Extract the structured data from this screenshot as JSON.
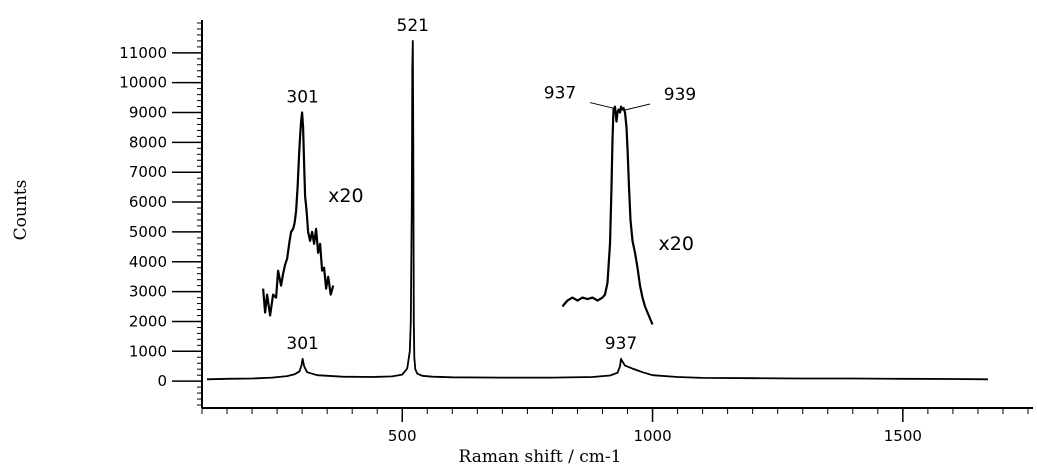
{
  "chart_data": {
    "type": "line",
    "title": "",
    "xlabel": "Raman shift / cm-1",
    "ylabel": "Counts",
    "xlim": [
      100,
      1760
    ],
    "ylim": [
      -900,
      12100
    ],
    "x_ticks": [
      500,
      1000,
      1500
    ],
    "x_tick_labels": [
      "500",
      "1000",
      "1500"
    ],
    "y_ticks": [
      0,
      1000,
      2000,
      3000,
      4000,
      5000,
      6000,
      7000,
      8000,
      9000,
      10000,
      11000
    ],
    "y_tick_labels": [
      "0",
      "1000",
      "2000",
      "3000",
      "4000",
      "5000",
      "6000",
      "7000",
      "8000",
      "9000",
      "10000",
      "11000"
    ],
    "grid": false,
    "legend": "none",
    "series": [
      {
        "name": "",
        "color": "#000000",
        "x": [
          110,
          150,
          200,
          240,
          270,
          285,
          295,
          299,
          301,
          304,
          310,
          330,
          380,
          440,
          480,
          500,
          510,
          515,
          517,
          519,
          520,
          521,
          522,
          523,
          524,
          526,
          530,
          540,
          560,
          600,
          700,
          800,
          880,
          915,
          930,
          935,
          937,
          939,
          945,
          960,
          980,
          1000,
          1050,
          1100,
          1200,
          1300,
          1400,
          1500,
          1600,
          1670
        ],
        "y": [
          60,
          80,
          90,
          120,
          170,
          230,
          330,
          550,
          750,
          500,
          300,
          200,
          150,
          140,
          160,
          220,
          420,
          1000,
          2000,
          6000,
          10500,
          11400,
          8000,
          2000,
          800,
          400,
          250,
          180,
          150,
          130,
          120,
          120,
          140,
          190,
          280,
          500,
          750,
          680,
          520,
          420,
          300,
          200,
          140,
          110,
          100,
          90,
          90,
          80,
          70,
          60
        ]
      },
      {
        "name": "",
        "color": "#000000",
        "x": [
          222,
          226,
          230,
          236,
          242,
          248,
          252,
          258,
          262,
          266,
          270,
          275,
          278,
          282,
          285,
          288,
          291,
          294,
          296,
          298,
          300,
          302,
          304,
          306,
          309,
          312,
          316,
          320,
          324,
          328,
          332,
          336,
          340,
          344,
          348,
          352,
          357,
          362
        ],
        "y": [
          3100,
          2300,
          2900,
          2200,
          2900,
          2800,
          3700,
          3200,
          3600,
          3900,
          4100,
          4700,
          5000,
          5100,
          5300,
          5700,
          6500,
          7600,
          8200,
          8700,
          9000,
          8500,
          7300,
          6200,
          5700,
          5000,
          4700,
          5000,
          4600,
          5100,
          4300,
          4600,
          3700,
          3800,
          3100,
          3500,
          2900,
          3200
        ]
      },
      {
        "name": "",
        "color": "#000000",
        "x": [
          820,
          825,
          830,
          840,
          850,
          860,
          870,
          880,
          890,
          900,
          905,
          910,
          915,
          918,
          920,
          922,
          925,
          928,
          930,
          932,
          935,
          937,
          939,
          942,
          945,
          948,
          950,
          953,
          956,
          960,
          965,
          970,
          975,
          980,
          985,
          990,
          995,
          1000
        ],
        "y": [
          2500,
          2600,
          2700,
          2800,
          2700,
          2800,
          2750,
          2800,
          2700,
          2800,
          2900,
          3300,
          4600,
          6500,
          8100,
          9100,
          9200,
          8700,
          9000,
          9100,
          9000,
          9200,
          9100,
          9150,
          9000,
          8500,
          7800,
          6500,
          5400,
          4700,
          4300,
          3800,
          3200,
          2800,
          2500,
          2300,
          2100,
          1900
        ]
      }
    ],
    "annotations": [
      {
        "text": "521",
        "x": 521,
        "y": 11400,
        "arrow": false
      },
      {
        "text": "301",
        "x": 301,
        "y": 9000,
        "arrow": false
      },
      {
        "text": "301",
        "x": 301,
        "y": 750,
        "arrow": false
      },
      {
        "text": "937",
        "x": 937,
        "y": 750,
        "arrow": false
      },
      {
        "text": "937",
        "x": 925,
        "y": 9200,
        "arrow": true
      },
      {
        "text": "939",
        "x": 945,
        "y": 9150,
        "arrow": true
      },
      {
        "text": "x20",
        "x": 340,
        "y": 6200,
        "arrow": false
      },
      {
        "text": "x20",
        "x": 1000,
        "y": 4600,
        "arrow": false
      }
    ]
  }
}
